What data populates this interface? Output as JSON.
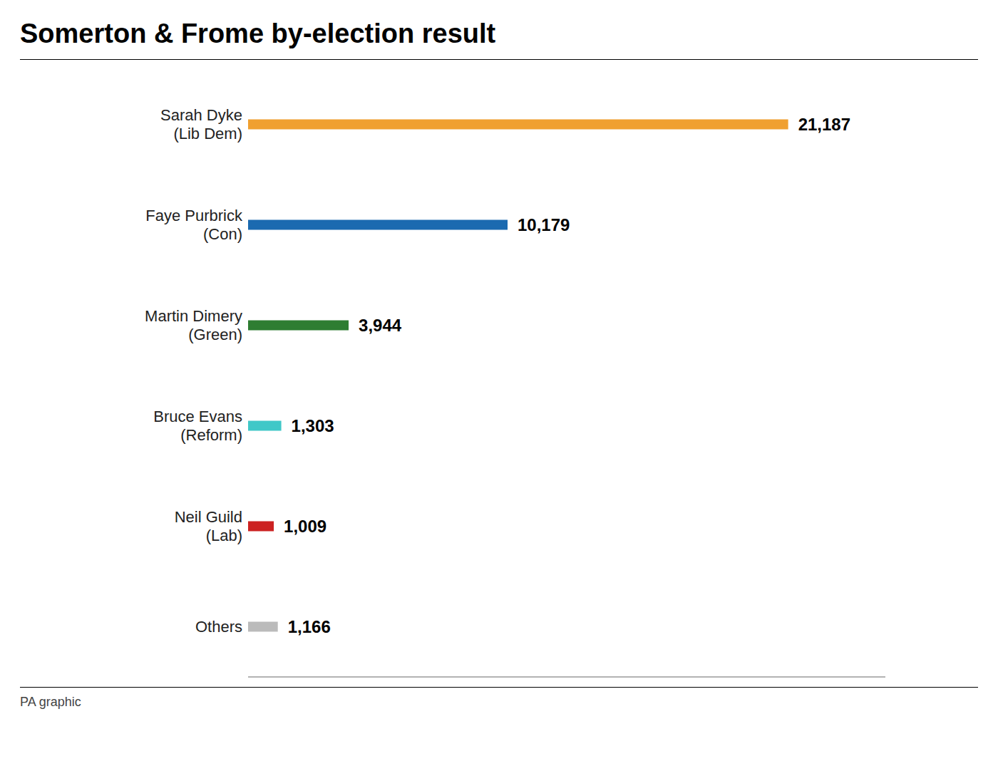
{
  "chart_data": {
    "type": "bar",
    "orientation": "horizontal",
    "title": "Somerton & Frome by-election result",
    "categories": [
      "Sarah Dyke\n(Lib Dem)",
      "Faye Purbrick\n(Con)",
      "Martin Dimery\n(Green)",
      "Bruce Evans\n(Reform)",
      "Neil Guild\n(Lab)",
      "Others"
    ],
    "values": [
      21187,
      10179,
      3944,
      1303,
      1009,
      1166
    ],
    "value_labels": [
      "21,187",
      "10,179",
      "3,944",
      "1,303",
      "1,009",
      "1,166"
    ],
    "data_labels": true,
    "colors": [
      "#F0A030",
      "#1B6AB0",
      "#2E7D32",
      "#40C8C8",
      "#CC2222",
      "#BBBBBB"
    ],
    "xlim": [
      0,
      25000
    ],
    "tick_labels": "y",
    "grid": false,
    "annotations": [
      "PA graphic"
    ]
  }
}
